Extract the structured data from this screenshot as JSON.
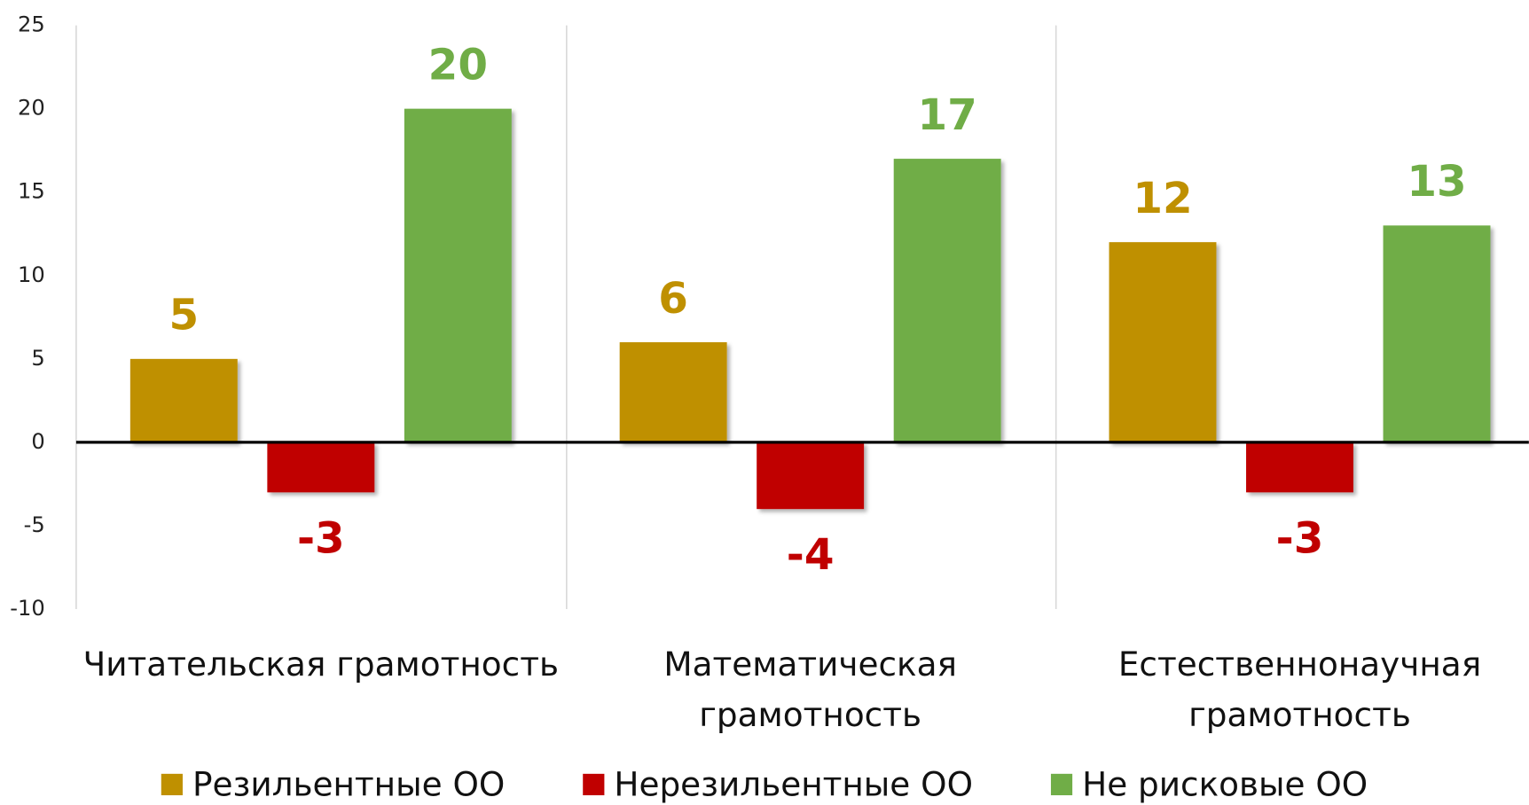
{
  "chart_data": {
    "type": "bar",
    "categories": [
      "Читательская грамотность",
      "Математическая грамотность",
      "Естественнонаучная грамотность"
    ],
    "series": [
      {
        "name": "Резильентные ОО",
        "color": "#bf9000",
        "values": [
          5,
          6,
          12
        ]
      },
      {
        "name": "Нерезильентные ОО",
        "color": "#c00000",
        "values": [
          -3,
          -4,
          -3
        ]
      },
      {
        "name": "Не рисковые ОО",
        "color": "#70ad47",
        "values": [
          20,
          17,
          13
        ]
      }
    ],
    "ylim": [
      -10,
      25
    ],
    "yticks": [
      -10,
      -5,
      0,
      5,
      10,
      15,
      20,
      25
    ],
    "grid": false,
    "legend": "bottom"
  }
}
